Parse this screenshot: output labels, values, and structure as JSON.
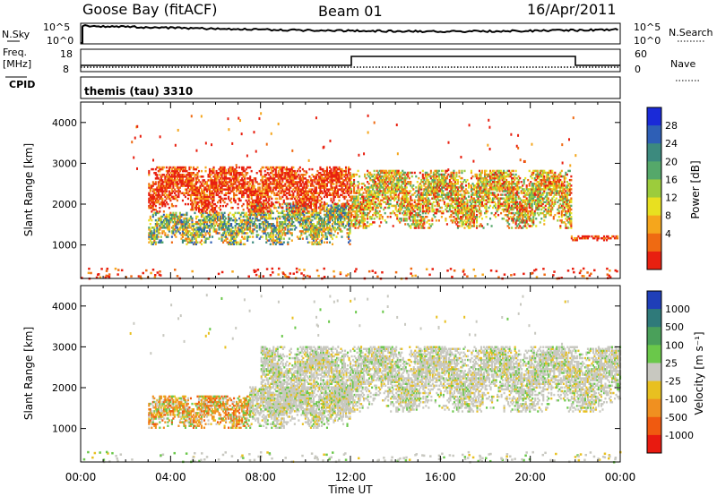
{
  "header": {
    "station": "Goose Bay (fitACF)",
    "beam": "Beam 01",
    "date": "16/Apr/2011"
  },
  "top_panels": {
    "nsky_label": "N.Sky",
    "nsky_ticks": [
      "10^5",
      "10^0"
    ],
    "nsearch_label": "N.Search",
    "freq_label_1": "Freq.",
    "freq_label_2": "[MHz]",
    "freq_ticks": [
      "18",
      "8"
    ],
    "nave_label": "Nave",
    "nave_ticks": [
      "60",
      "0"
    ],
    "cpid_label": "CPID",
    "cpid_text": "themis (tau) 3310"
  },
  "chart_data": [
    {
      "type": "heatmap",
      "name": "power",
      "ylabel": "Slant Range [km]",
      "ylim": [
        180,
        4500
      ],
      "yticks": [
        "1000",
        "2000",
        "3000",
        "4000"
      ],
      "xlim_hours": [
        0,
        24
      ],
      "colorbar": {
        "label": "Power [dB]",
        "ticks": [
          "28",
          "24",
          "20",
          "16",
          "12",
          "8",
          "4"
        ],
        "colors": [
          "#1a2ad8",
          "#2e5fb6",
          "#3c8a7e",
          "#55a86a",
          "#9ccc3c",
          "#e8e020",
          "#f5a61c",
          "#ef6a12",
          "#e82010"
        ]
      },
      "echo_regions": [
        {
          "t": [
            3.0,
            7.5
          ],
          "r": [
            1000,
            1800
          ],
          "level": "high"
        },
        {
          "t": [
            7.5,
            12.0
          ],
          "r": [
            1000,
            2000
          ],
          "level": "high"
        },
        {
          "t": [
            3.0,
            12.0
          ],
          "r": [
            1800,
            2900
          ],
          "level": "low"
        },
        {
          "t": [
            12.0,
            21.8
          ],
          "r": [
            1400,
            2800
          ],
          "level": "medium"
        },
        {
          "t": [
            21.8,
            24.0
          ],
          "r": [
            1100,
            1200
          ],
          "level": "low"
        }
      ]
    },
    {
      "type": "heatmap",
      "name": "velocity",
      "ylabel": "Slant Range [km]",
      "xlabel": "Time UT",
      "ylim": [
        180,
        4500
      ],
      "yticks": [
        "1000",
        "2000",
        "3000",
        "4000"
      ],
      "xticks": [
        "00:00",
        "04:00",
        "08:00",
        "12:00",
        "16:00",
        "20:00",
        "00:00"
      ],
      "colorbar": {
        "label": "Velocity [m s⁻¹]",
        "ticks": [
          "1000",
          "500",
          "100",
          "25",
          "-25",
          "-100",
          "-500",
          "-1000"
        ],
        "colors": [
          "#1f3fb8",
          "#2f7a7a",
          "#4aa05a",
          "#6ac84a",
          "#c8c8c0",
          "#e8c020",
          "#f09020",
          "#f05a10",
          "#e81a10"
        ]
      },
      "echo_regions": [
        {
          "t": [
            3.0,
            7.5
          ],
          "r": [
            1000,
            1800
          ],
          "velocity": "negative"
        },
        {
          "t": [
            7.5,
            12.0
          ],
          "r": [
            1000,
            2000
          ],
          "velocity": "near-zero"
        },
        {
          "t": [
            8.0,
            24.0
          ],
          "r": [
            1400,
            3000
          ],
          "velocity": "near-zero"
        }
      ]
    }
  ]
}
